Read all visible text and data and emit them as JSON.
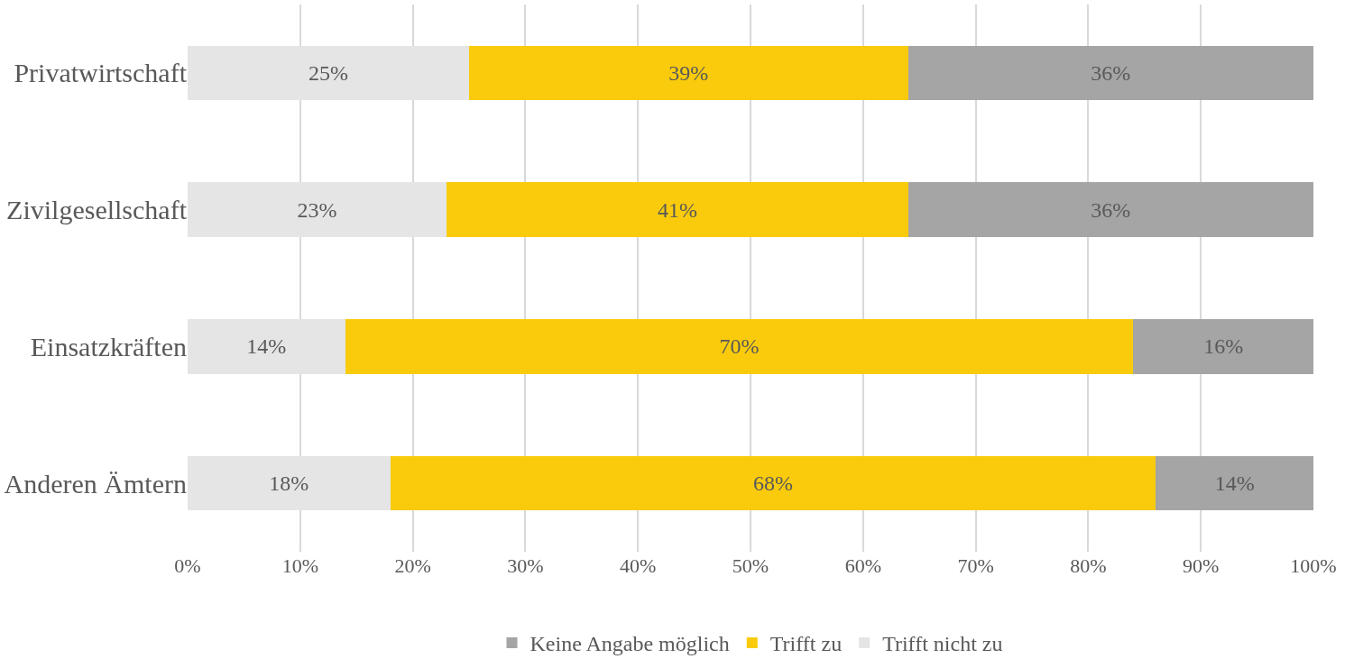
{
  "chart_data": {
    "type": "bar",
    "orientation": "horizontal",
    "stacked": true,
    "categories": [
      "Privatwirtschaft",
      "Zivilgesellschaft",
      "Einsatzkräften",
      "Anderen Ämtern"
    ],
    "series": [
      {
        "name": "Trifft nicht zu",
        "color": "#e5e5e5",
        "values": [
          25,
          23,
          14,
          18
        ],
        "value_labels": [
          "25%",
          "23%",
          "14%",
          "18%"
        ]
      },
      {
        "name": "Trifft zu",
        "color": "#f9cb0c",
        "values": [
          39,
          41,
          70,
          68
        ],
        "value_labels": [
          "39%",
          "41%",
          "70%",
          "68%"
        ]
      },
      {
        "name": "Keine Angabe möglich",
        "color": "#a5a5a5",
        "values": [
          36,
          36,
          16,
          14
        ],
        "value_labels": [
          "36%",
          "36%",
          "16%",
          "14%"
        ]
      }
    ],
    "xlim": [
      0,
      100
    ],
    "xticks": [
      {
        "value": 0,
        "label": "0%"
      },
      {
        "value": 10,
        "label": "10%"
      },
      {
        "value": 20,
        "label": "20%"
      },
      {
        "value": 30,
        "label": "30%"
      },
      {
        "value": 40,
        "label": "40%"
      },
      {
        "value": 50,
        "label": "50%"
      },
      {
        "value": 60,
        "label": "60%"
      },
      {
        "value": 70,
        "label": "70%"
      },
      {
        "value": 80,
        "label": "80%"
      },
      {
        "value": 90,
        "label": "90%"
      },
      {
        "value": 100,
        "label": "100%"
      }
    ],
    "grid": "x",
    "legend": "bottom"
  }
}
